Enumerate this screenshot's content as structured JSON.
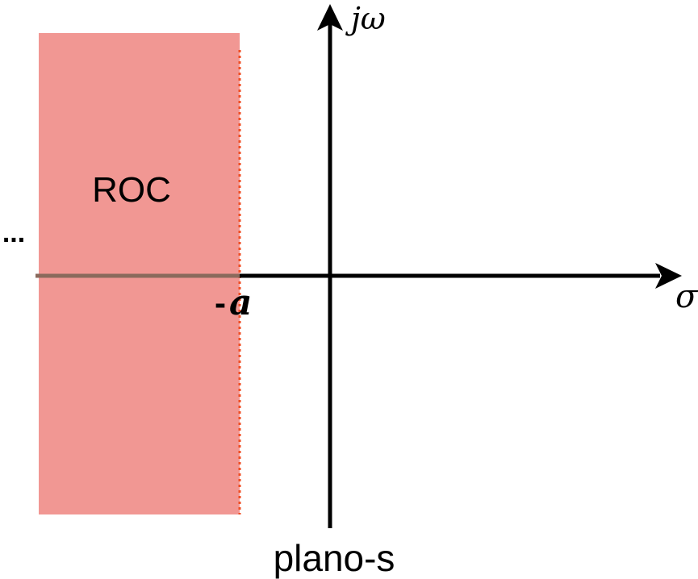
{
  "diagram": {
    "region_label": "ROC",
    "ellipsis": "...",
    "imag_axis_label": "jω",
    "real_axis_label": "σ",
    "boundary_minus": "-",
    "boundary_var": "a",
    "plane_label": "plano-s"
  },
  "colors": {
    "region_fill": "#f19793",
    "boundary_line": "#f04e23",
    "axis": "#000000",
    "axis_overlay": "#8a6a5c"
  }
}
